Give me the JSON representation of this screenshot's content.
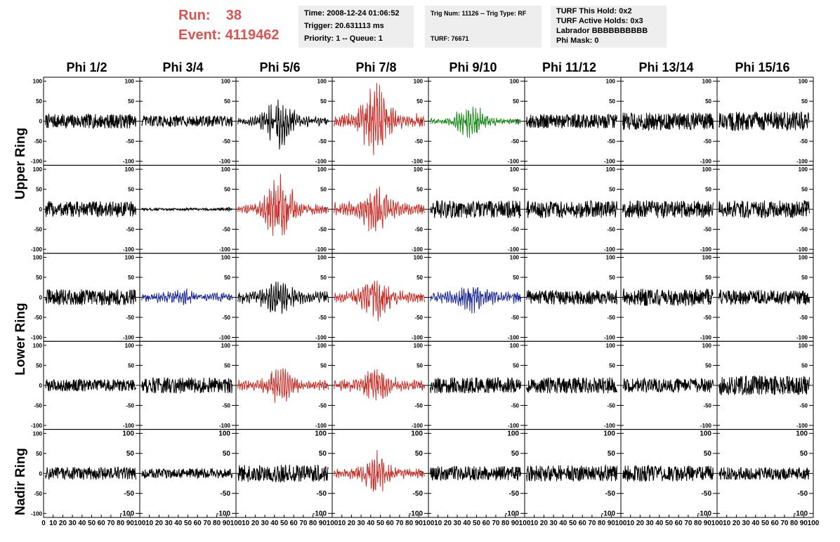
{
  "header": {
    "run_label": "Run:",
    "run_value": "38",
    "event_label": "Event:",
    "event_value": "4119462"
  },
  "info_panels": [
    {
      "lines": [
        "Time: 2008-12-24 01:06:52",
        "Trigger: 20.631113 ms",
        "Priority: 1 -- Queue: 1"
      ]
    },
    {
      "lines": [
        "Trig Num: 11126 -- Trig Type: RF",
        "",
        "TURF: 76671"
      ]
    },
    {
      "lines": [
        "TURF This Hold: 0x2",
        "TURF Active Holds: 0x3",
        "Labrador BBBBBBBBBB",
        "Phi Mask: 0"
      ]
    }
  ],
  "columns": [
    "Phi 1/2",
    "Phi 3/4",
    "Phi 5/6",
    "Phi 7/8",
    "Phi 9/10",
    "Phi 11/12",
    "Phi 13/14",
    "Phi 15/16"
  ],
  "ring_labels": [
    "Upper Ring",
    "Lower Ring",
    "Nadir Ring"
  ],
  "y_ticks": [
    "100",
    "50",
    "0",
    "-50",
    "-100"
  ],
  "x_ticks": [
    "0",
    "10",
    "20",
    "30",
    "40",
    "50",
    "60",
    "70",
    "80",
    "90",
    "100"
  ],
  "colors": {
    "black": "#000000",
    "red": "#c8302a",
    "green": "#1a8a1a",
    "blue": "#1c2a9a",
    "header_red": "#d9534f",
    "panel_bg": "#eeeeee"
  },
  "chart_data": {
    "type": "line",
    "xlim": [
      0,
      100
    ],
    "ylim": [
      -110,
      110
    ],
    "panels": [
      [
        {
          "color": "black",
          "amp": 18,
          "burst": 0
        },
        {
          "color": "black",
          "amp": 14,
          "burst": 0
        },
        {
          "color": "black",
          "amp": 14,
          "burst": 70
        },
        {
          "color": "red",
          "amp": 22,
          "burst": 90
        },
        {
          "color": "green",
          "amp": 10,
          "burst": 45
        },
        {
          "color": "black",
          "amp": 18,
          "burst": 0
        },
        {
          "color": "black",
          "amp": 22,
          "burst": 0
        },
        {
          "color": "black",
          "amp": 24,
          "burst": 0
        }
      ],
      [
        {
          "color": "black",
          "amp": 20,
          "burst": 0
        },
        {
          "color": "black",
          "amp": 3,
          "burst": 0
        },
        {
          "color": "red",
          "amp": 16,
          "burst": 85
        },
        {
          "color": "red",
          "amp": 20,
          "burst": 55
        },
        {
          "color": "black",
          "amp": 22,
          "burst": 0
        },
        {
          "color": "black",
          "amp": 22,
          "burst": 0
        },
        {
          "color": "black",
          "amp": 22,
          "burst": 0
        },
        {
          "color": "black",
          "amp": 22,
          "burst": 0
        }
      ],
      [
        {
          "color": "black",
          "amp": 20,
          "burst": 0
        },
        {
          "color": "blue",
          "amp": 14,
          "burst": 10
        },
        {
          "color": "black",
          "amp": 18,
          "burst": 35
        },
        {
          "color": "red",
          "amp": 16,
          "burst": 55
        },
        {
          "color": "blue",
          "amp": 18,
          "burst": 25
        },
        {
          "color": "black",
          "amp": 18,
          "burst": 0
        },
        {
          "color": "black",
          "amp": 22,
          "burst": 0
        },
        {
          "color": "black",
          "amp": 18,
          "burst": 0
        }
      ],
      [
        {
          "color": "black",
          "amp": 15,
          "burst": 0
        },
        {
          "color": "black",
          "amp": 20,
          "burst": 0
        },
        {
          "color": "red",
          "amp": 16,
          "burst": 40
        },
        {
          "color": "red",
          "amp": 16,
          "burst": 40
        },
        {
          "color": "black",
          "amp": 20,
          "burst": 0
        },
        {
          "color": "black",
          "amp": 20,
          "burst": 0
        },
        {
          "color": "black",
          "amp": 18,
          "burst": 0
        },
        {
          "color": "black",
          "amp": 24,
          "burst": 0
        }
      ],
      [
        {
          "color": "black",
          "amp": 16,
          "burst": 0
        },
        {
          "color": "black",
          "amp": 12,
          "burst": 0
        },
        {
          "color": "black",
          "amp": 22,
          "burst": 0
        },
        {
          "color": "red",
          "amp": 14,
          "burst": 55
        },
        {
          "color": "black",
          "amp": 18,
          "burst": 0
        },
        {
          "color": "black",
          "amp": 20,
          "burst": 0
        },
        {
          "color": "black",
          "amp": 20,
          "burst": 0
        },
        {
          "color": "black",
          "amp": 16,
          "burst": 0
        }
      ]
    ]
  }
}
